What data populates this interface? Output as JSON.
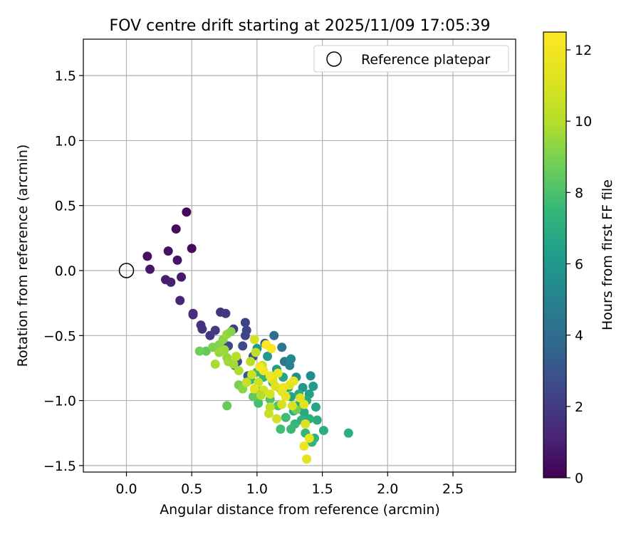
{
  "chart_data": {
    "type": "scatter",
    "title": "FOV centre drift starting at 2025/11/09 17:05:39",
    "xlabel": "Angular distance from reference (arcmin)",
    "ylabel": "Rotation from reference (arcmin)",
    "xlim": [
      -0.33,
      2.98
    ],
    "ylim": [
      -1.55,
      1.78
    ],
    "xticks": [
      0.0,
      0.5,
      1.0,
      1.5,
      2.0,
      2.5
    ],
    "xtick_labels": [
      "0.0",
      "0.5",
      "1.0",
      "1.5",
      "2.0",
      "2.5"
    ],
    "yticks": [
      -1.5,
      -1.0,
      -0.5,
      0.0,
      0.5,
      1.0,
      1.5
    ],
    "ytick_labels": [
      "−1.5",
      "−1.0",
      "−0.5",
      "0.0",
      "0.5",
      "1.0",
      "1.5"
    ],
    "grid": true,
    "legend": {
      "position": "top-right",
      "label": "Reference platepar"
    },
    "reference_point": {
      "x": 0.0,
      "y": 0.0
    },
    "colorbar": {
      "label": "Hours from first FF file",
      "colormap": "viridis",
      "range": [
        0,
        12.5
      ],
      "ticks": [
        0,
        2,
        4,
        6,
        8,
        10,
        12
      ],
      "tick_labels": [
        "0",
        "2",
        "4",
        "6",
        "8",
        "10",
        "12"
      ]
    },
    "points": [
      [
        0.46,
        0.45,
        0.2
      ],
      [
        0.38,
        0.32,
        0.3
      ],
      [
        0.5,
        0.17,
        0.4
      ],
      [
        0.16,
        0.11,
        0.5
      ],
      [
        0.32,
        0.15,
        0.5
      ],
      [
        0.39,
        0.08,
        0.6
      ],
      [
        0.18,
        0.01,
        0.7
      ],
      [
        0.42,
        -0.05,
        0.8
      ],
      [
        0.3,
        -0.07,
        0.9
      ],
      [
        0.34,
        -0.09,
        1.0
      ],
      [
        0.41,
        -0.23,
        1.2
      ],
      [
        0.51,
        -0.33,
        1.4
      ],
      [
        0.51,
        -0.34,
        1.5
      ],
      [
        0.57,
        -0.42,
        1.6
      ],
      [
        0.58,
        -0.45,
        1.7
      ],
      [
        0.72,
        -0.32,
        1.8
      ],
      [
        0.76,
        -0.33,
        1.9
      ],
      [
        0.64,
        -0.5,
        1.8
      ],
      [
        0.68,
        -0.46,
        2.0
      ],
      [
        0.82,
        -0.45,
        2.1
      ],
      [
        0.91,
        -0.4,
        2.2
      ],
      [
        0.92,
        -0.46,
        2.3
      ],
      [
        0.91,
        -0.5,
        2.4
      ],
      [
        0.78,
        -0.58,
        2.5
      ],
      [
        0.89,
        -0.58,
        2.6
      ],
      [
        0.85,
        -0.7,
        2.7
      ],
      [
        0.97,
        -0.66,
        2.8
      ],
      [
        0.83,
        -0.73,
        2.9
      ],
      [
        0.93,
        -0.81,
        3.0
      ],
      [
        1.06,
        -0.56,
        3.2
      ],
      [
        1.13,
        -0.5,
        4.2
      ],
      [
        1.19,
        -0.59,
        4.4
      ],
      [
        1.21,
        -0.7,
        4.6
      ],
      [
        1.25,
        -0.73,
        5.0
      ],
      [
        1.26,
        -0.68,
        5.3
      ],
      [
        1.3,
        -0.82,
        5.5
      ],
      [
        1.41,
        -0.81,
        5.6
      ],
      [
        1.35,
        -0.9,
        6.0
      ],
      [
        1.43,
        -0.89,
        6.2
      ],
      [
        1.4,
        -0.95,
        6.4
      ],
      [
        1.26,
        -0.97,
        6.5
      ],
      [
        1.31,
        -1.04,
        6.7
      ],
      [
        1.36,
        -1.09,
        6.8
      ],
      [
        1.45,
        -1.05,
        6.6
      ],
      [
        1.46,
        -1.15,
        6.9
      ],
      [
        1.51,
        -1.23,
        7.0
      ],
      [
        1.7,
        -1.25,
        7.1
      ],
      [
        1.44,
        -1.29,
        7.2
      ],
      [
        1.42,
        -1.32,
        7.3
      ],
      [
        1.37,
        -1.25,
        7.4
      ],
      [
        1.29,
        -1.18,
        7.5
      ],
      [
        1.26,
        -1.22,
        7.6
      ],
      [
        1.18,
        -1.22,
        7.8
      ],
      [
        1.22,
        -1.13,
        7.7
      ],
      [
        1.32,
        -0.95,
        6.9
      ],
      [
        1.24,
        -0.9,
        7.0
      ],
      [
        1.18,
        -0.91,
        7.2
      ],
      [
        1.12,
        -0.86,
        7.5
      ],
      [
        1.05,
        -0.82,
        7.3
      ],
      [
        1.0,
        -0.78,
        7.4
      ],
      [
        0.95,
        -0.84,
        7.6
      ],
      [
        1.02,
        -0.93,
        7.8
      ],
      [
        1.1,
        -0.99,
        8.0
      ],
      [
        1.16,
        -1.04,
        8.2
      ],
      [
        1.01,
        -1.02,
        7.9
      ],
      [
        0.97,
        -0.97,
        8.4
      ],
      [
        1.28,
        -1.08,
        7.0
      ],
      [
        1.34,
        -1.15,
        7.2
      ],
      [
        1.15,
        -0.76,
        6.3
      ],
      [
        1.08,
        -0.66,
        6.1
      ],
      [
        1.0,
        -0.6,
        5.9
      ],
      [
        1.2,
        -0.82,
        6.6
      ],
      [
        1.38,
        -1.0,
        6.8
      ],
      [
        1.4,
        -1.14,
        7.1
      ],
      [
        1.3,
        -1.07,
        8.8
      ],
      [
        0.77,
        -1.04,
        8.6
      ],
      [
        0.61,
        -0.62,
        8.5
      ],
      [
        0.56,
        -0.62,
        8.7
      ],
      [
        0.66,
        -0.59,
        9.0
      ],
      [
        0.71,
        -0.57,
        9.1
      ],
      [
        0.74,
        -0.53,
        9.3
      ],
      [
        0.77,
        -0.49,
        9.4
      ],
      [
        0.8,
        -0.47,
        9.2
      ],
      [
        0.71,
        -0.63,
        9.5
      ],
      [
        0.77,
        -0.67,
        9.4
      ],
      [
        0.75,
        -0.61,
        9.6
      ],
      [
        0.68,
        -0.72,
        9.8
      ],
      [
        0.82,
        -0.72,
        9.7
      ],
      [
        0.86,
        -0.77,
        9.9
      ],
      [
        0.84,
        -0.66,
        10.0
      ],
      [
        0.78,
        -0.7,
        9.6
      ],
      [
        0.86,
        -0.88,
        8.9
      ],
      [
        0.89,
        -0.91,
        9.2
      ],
      [
        0.95,
        -0.7,
        10.1
      ],
      [
        0.99,
        -0.63,
        10.3
      ],
      [
        1.04,
        -0.73,
        10.4
      ],
      [
        0.96,
        -0.8,
        10.6
      ],
      [
        1.01,
        -0.86,
        10.7
      ],
      [
        0.92,
        -0.86,
        10.5
      ],
      [
        1.05,
        -0.92,
        10.8
      ],
      [
        1.1,
        -0.95,
        11.0
      ],
      [
        1.12,
        -0.84,
        11.1
      ],
      [
        1.14,
        -0.89,
        11.2
      ],
      [
        1.19,
        -0.93,
        11.3
      ],
      [
        1.25,
        -0.88,
        11.4
      ],
      [
        1.22,
        -0.97,
        11.5
      ],
      [
        1.28,
        -0.85,
        11.6
      ],
      [
        1.16,
        -0.79,
        11.7
      ],
      [
        1.1,
        -0.81,
        11.9
      ],
      [
        1.05,
        -0.77,
        12.0
      ],
      [
        1.02,
        -0.74,
        12.2
      ],
      [
        1.11,
        -0.6,
        12.3
      ],
      [
        1.07,
        -0.57,
        12.4
      ],
      [
        0.98,
        -0.53,
        10.9
      ],
      [
        1.1,
        -1.05,
        10.2
      ],
      [
        1.09,
        -1.1,
        10.6
      ],
      [
        1.15,
        -1.14,
        10.8
      ],
      [
        1.19,
        -1.03,
        11.0
      ],
      [
        1.27,
        -1.04,
        10.9
      ],
      [
        1.36,
        -1.03,
        11.3
      ],
      [
        1.37,
        -1.18,
        11.1
      ],
      [
        1.4,
        -1.29,
        11.6
      ],
      [
        1.36,
        -1.35,
        11.8
      ],
      [
        1.38,
        -1.45,
        11.4
      ],
      [
        1.33,
        -0.98,
        11.2
      ],
      [
        1.2,
        -0.9,
        11.8
      ],
      [
        0.98,
        -0.91,
        11.3
      ],
      [
        1.03,
        -0.96,
        10.0
      ]
    ]
  }
}
